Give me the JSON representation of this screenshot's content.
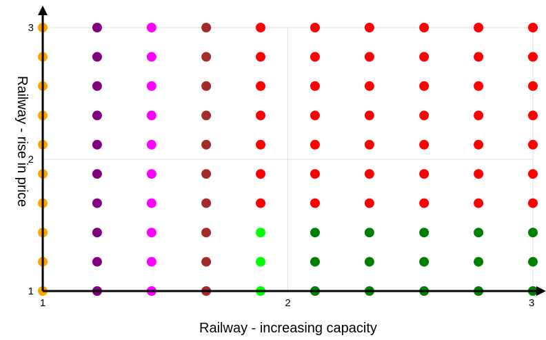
{
  "chart_data": {
    "type": "scatter",
    "xlabel": "Railway - increasing capacity",
    "ylabel": "Railway - rise in price",
    "xlim": [
      1,
      3
    ],
    "ylim": [
      1,
      3
    ],
    "x_ticks": [
      "1",
      "2",
      "3"
    ],
    "y_ticks": [
      "1",
      "2",
      "3"
    ],
    "grid": true,
    "x": [
      1,
      1.222,
      1.444,
      1.667,
      1.889,
      2.111,
      2.333,
      2.556,
      2.778,
      3
    ],
    "y": [
      1,
      1.222,
      1.444,
      1.667,
      1.889,
      2.111,
      2.333,
      2.556,
      2.778,
      3
    ],
    "colors": {
      "orange": "#ffa500",
      "purple": "#800080",
      "magenta": "#ff00ff",
      "brown": "#a52a2a",
      "red": "#ff0000",
      "lime": "#00ff00",
      "green": "#008000"
    },
    "color_grid_note_rows_bottom_to_top": [
      [
        "orange",
        "purple",
        "magenta",
        "brown",
        "lime",
        "green",
        "green",
        "green",
        "green",
        "green"
      ],
      [
        "orange",
        "purple",
        "magenta",
        "brown",
        "lime",
        "green",
        "green",
        "green",
        "green",
        "green"
      ],
      [
        "orange",
        "purple",
        "magenta",
        "brown",
        "lime",
        "green",
        "green",
        "green",
        "green",
        "green"
      ],
      [
        "orange",
        "purple",
        "magenta",
        "brown",
        "red",
        "red",
        "red",
        "red",
        "red",
        "red"
      ],
      [
        "orange",
        "purple",
        "magenta",
        "brown",
        "red",
        "red",
        "red",
        "red",
        "red",
        "red"
      ],
      [
        "orange",
        "purple",
        "magenta",
        "brown",
        "red",
        "red",
        "red",
        "red",
        "red",
        "red"
      ],
      [
        "orange",
        "purple",
        "magenta",
        "brown",
        "red",
        "red",
        "red",
        "red",
        "red",
        "red"
      ],
      [
        "orange",
        "purple",
        "magenta",
        "brown",
        "red",
        "red",
        "red",
        "red",
        "red",
        "red"
      ],
      [
        "orange",
        "purple",
        "magenta",
        "brown",
        "red",
        "red",
        "red",
        "red",
        "red",
        "red"
      ],
      [
        "orange",
        "purple",
        "magenta",
        "brown",
        "red",
        "red",
        "red",
        "red",
        "red",
        "red"
      ]
    ]
  }
}
